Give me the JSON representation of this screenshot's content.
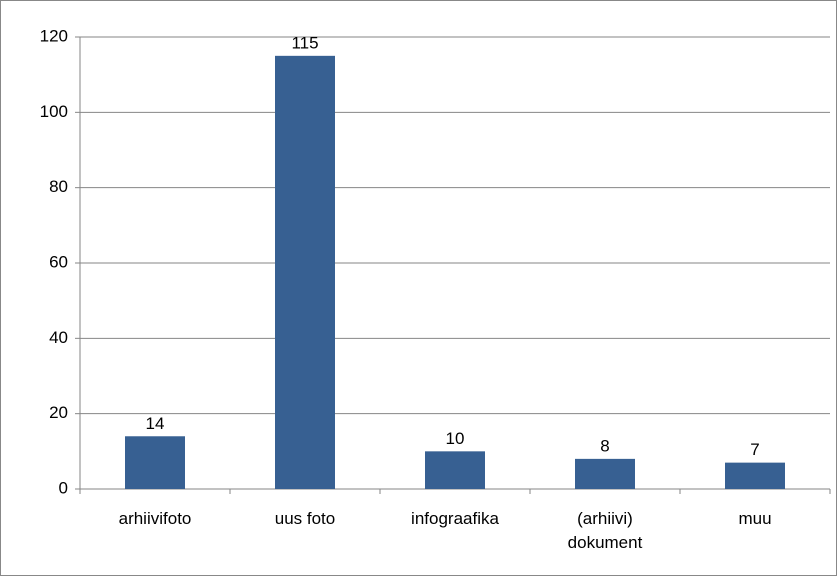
{
  "chart_data": {
    "type": "bar",
    "categories": [
      "arhiivifoto",
      "uus foto",
      "infograafika",
      "(arhiivi) dokument",
      "muu"
    ],
    "values": [
      14,
      115,
      10,
      8,
      7
    ],
    "color": "#376092",
    "ylim": [
      0,
      120
    ],
    "yticks": [
      0,
      20,
      40,
      60,
      80,
      100,
      120
    ],
    "grid": true
  }
}
